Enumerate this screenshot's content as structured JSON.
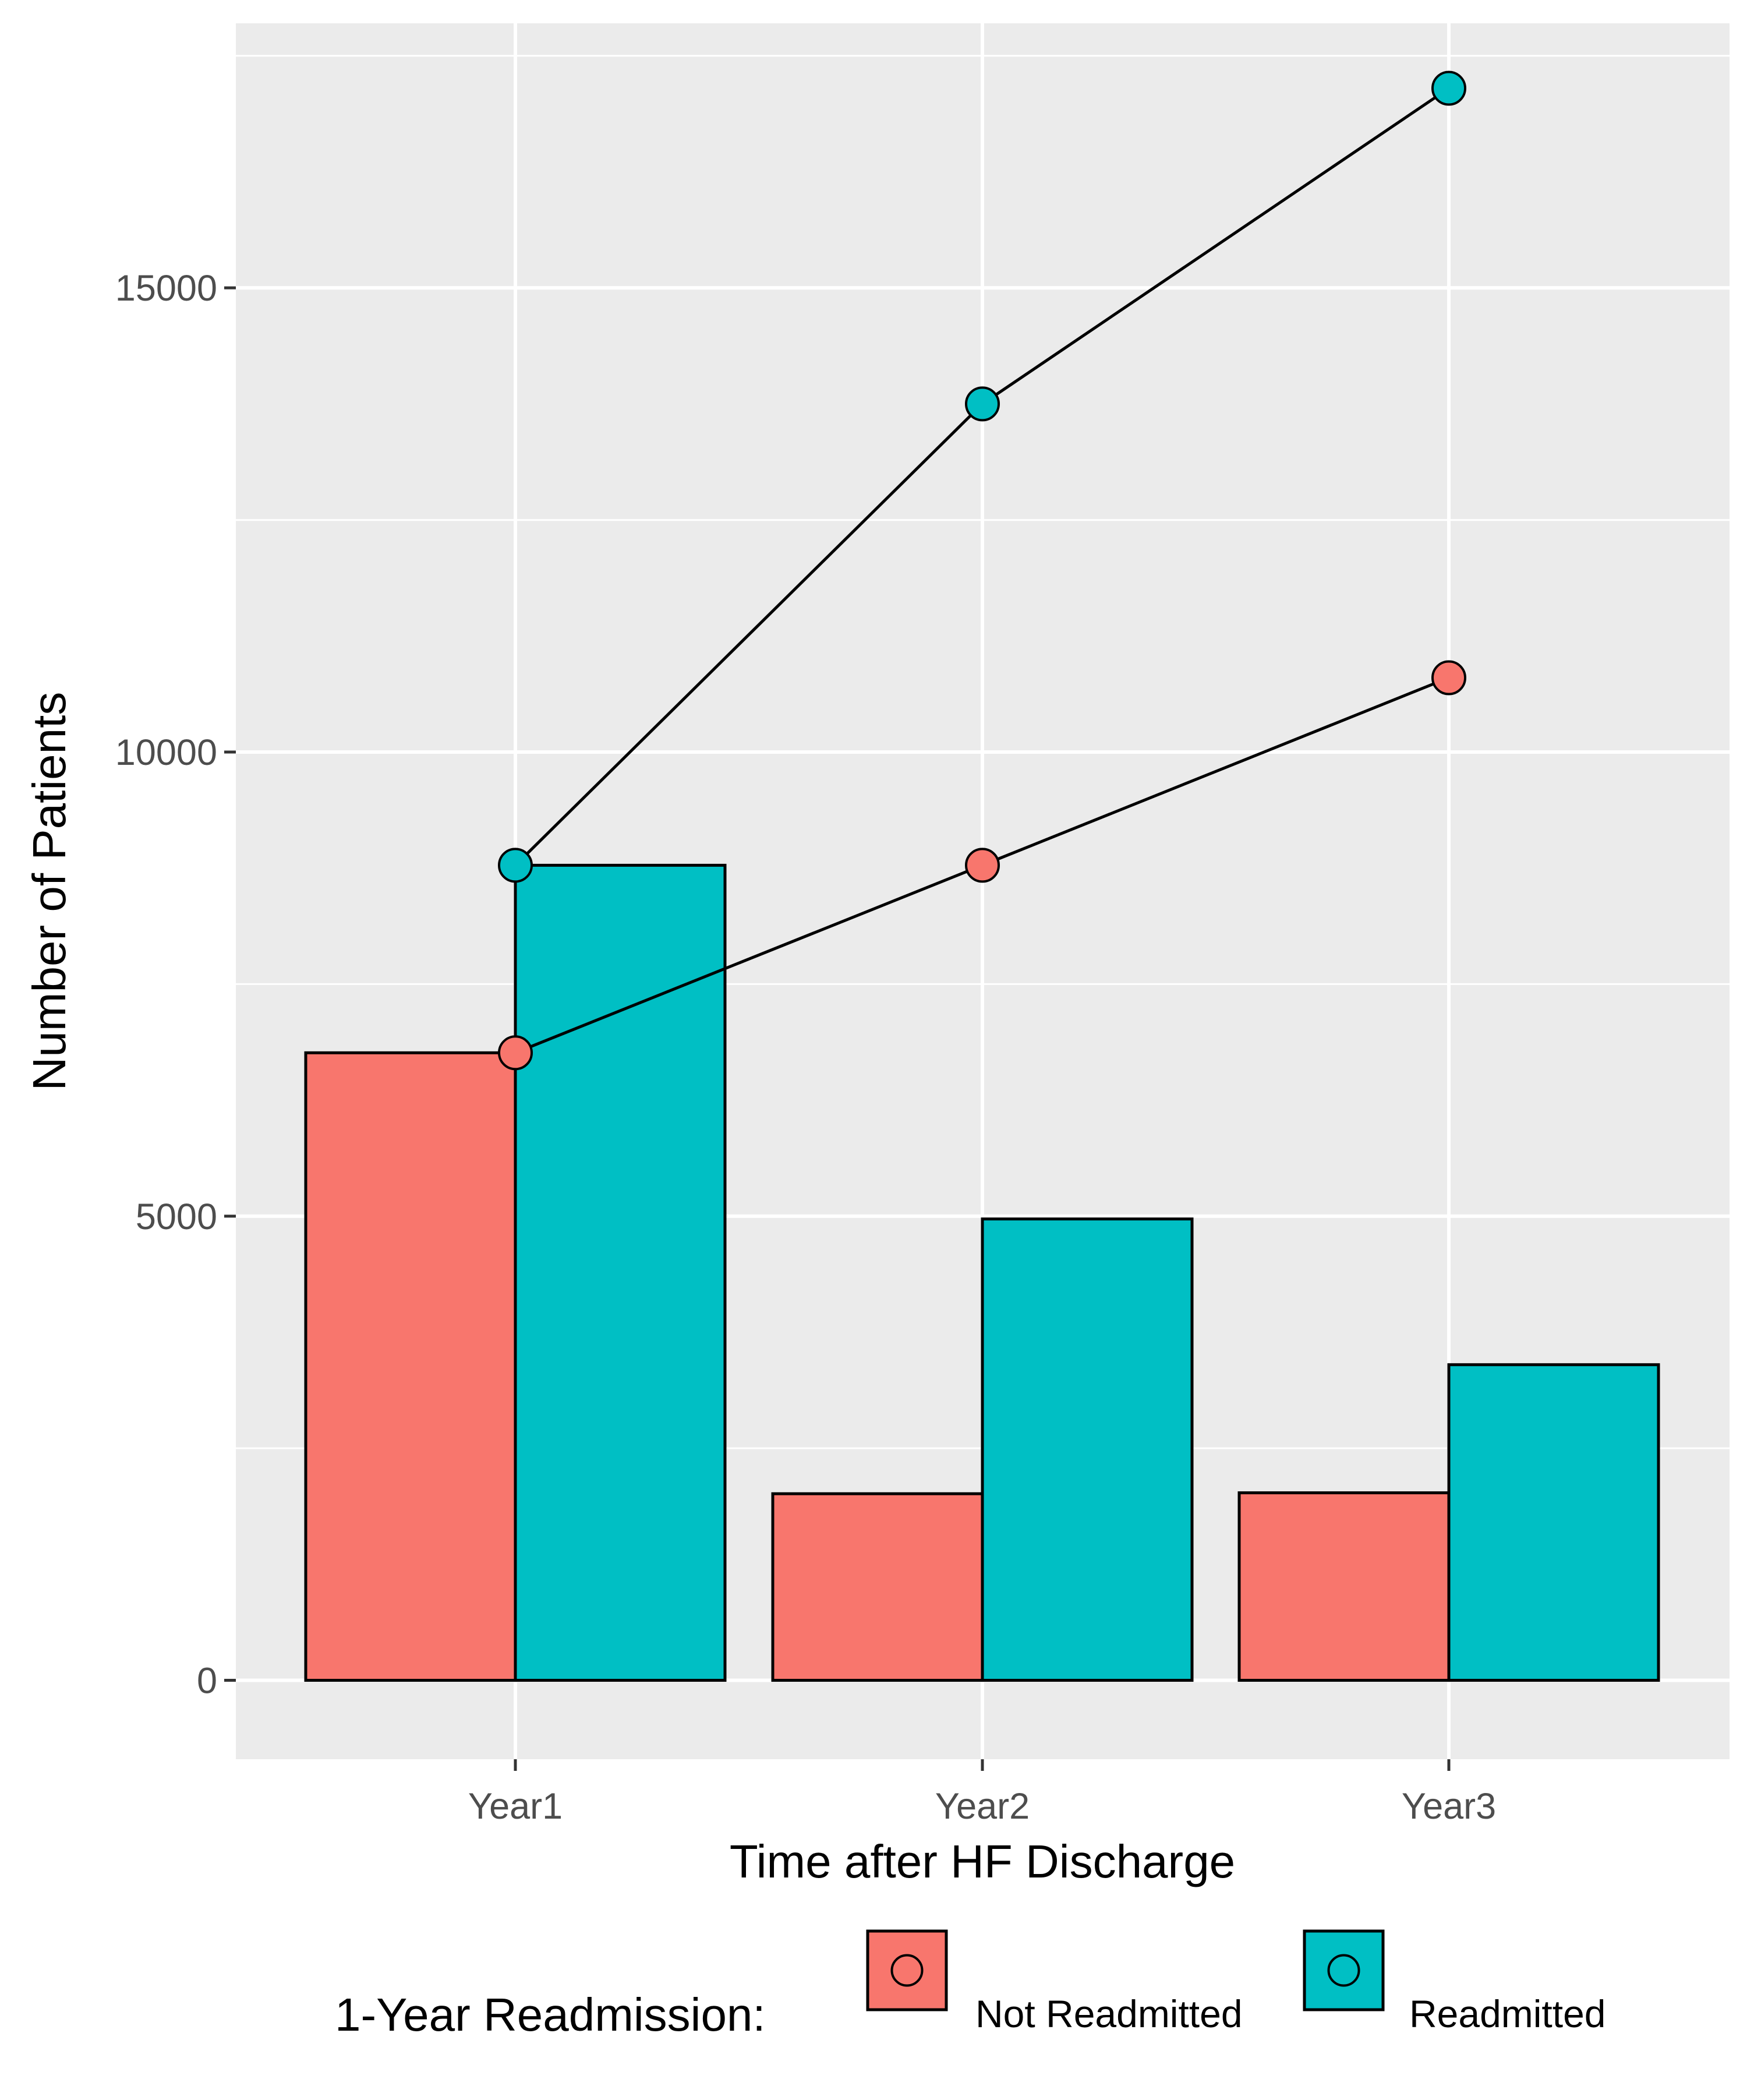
{
  "chart_data": {
    "type": "bar",
    "title": "",
    "xlabel": "Time after HF Discharge",
    "ylabel": "Number of Patients",
    "categories": [
      "Year1",
      "Year2",
      "Year3"
    ],
    "ylim": [
      -850,
      17850
    ],
    "yticks": [
      0,
      5000,
      10000,
      15000
    ],
    "yticks_labels": [
      "0",
      "5000",
      "10000",
      "15000"
    ],
    "grid": true,
    "legend_position": "bottom",
    "legend_title": "1-Year Readmission:",
    "series": [
      {
        "name": "Not Readmitted",
        "color": "#F8766D",
        "bars": [
          6760,
          2010,
          2020
        ],
        "line": [
          6760,
          8780,
          10800
        ]
      },
      {
        "name": "Readmitted",
        "color": "#00BFC4",
        "bars": [
          8780,
          4970,
          3400
        ],
        "line": [
          8780,
          13750,
          17150
        ]
      }
    ]
  }
}
